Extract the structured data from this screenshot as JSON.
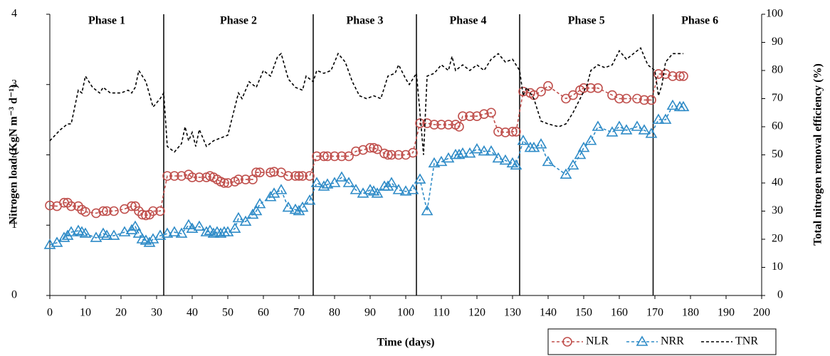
{
  "chart_data": {
    "type": "line",
    "x_label": "Time (days)",
    "y_label": "Nitrogen load (KgN m⁻³ d⁻¹)",
    "y2_label": "Total nitrogen removal efficiency (%)",
    "xlim": [
      0,
      200
    ],
    "xticks": [
      0,
      10,
      20,
      30,
      40,
      50,
      60,
      70,
      80,
      90,
      100,
      110,
      120,
      130,
      140,
      150,
      160,
      170,
      180,
      190,
      200
    ],
    "ylim": [
      0,
      4
    ],
    "yticks": [
      0,
      1,
      2,
      3,
      4
    ],
    "y2lim": [
      0,
      100
    ],
    "y2ticks": [
      0,
      10,
      20,
      30,
      40,
      50,
      60,
      70,
      80,
      90,
      100
    ],
    "phase_labels": [
      "Phase 1",
      "Phase 2",
      "Phase 3",
      "Phase 4",
      "Phase 5",
      "Phase 6"
    ],
    "phase_boundaries": [
      32,
      74,
      103,
      132,
      169.5
    ],
    "x": [
      0,
      2,
      4,
      5,
      6,
      8,
      9,
      10,
      13,
      15,
      16,
      18,
      21,
      23,
      24,
      25,
      26,
      27,
      28,
      29,
      31,
      33,
      35,
      37,
      39,
      40,
      42,
      44,
      45,
      46,
      47,
      48,
      49,
      50,
      52,
      53,
      55,
      57,
      58,
      59,
      62,
      63,
      65,
      67,
      69,
      70,
      71,
      73,
      75,
      77,
      78,
      80,
      82,
      84,
      86,
      88,
      90,
      91,
      92,
      94,
      95,
      96,
      98,
      100,
      102,
      104,
      106,
      108,
      110,
      112,
      114,
      115,
      116,
      118,
      120,
      122,
      124,
      126,
      128,
      130,
      131,
      133,
      135,
      136,
      138,
      140,
      145,
      147,
      149,
      150,
      152,
      154,
      158,
      160,
      162,
      165,
      167,
      169,
      171,
      173,
      175,
      177,
      178
    ],
    "series": [
      {
        "name": "NLR",
        "color": "#c0504d",
        "marker": "circle",
        "values": [
          1.28,
          1.27,
          1.32,
          1.32,
          1.27,
          1.27,
          1.22,
          1.19,
          1.17,
          1.2,
          1.2,
          1.2,
          1.23,
          1.27,
          1.27,
          1.2,
          1.15,
          1.14,
          1.15,
          1.2,
          1.2,
          1.7,
          1.7,
          1.7,
          1.72,
          1.68,
          1.68,
          1.68,
          1.7,
          1.68,
          1.65,
          1.62,
          1.6,
          1.6,
          1.62,
          1.65,
          1.65,
          1.65,
          1.75,
          1.75,
          1.75,
          1.76,
          1.75,
          1.7,
          1.7,
          1.7,
          1.7,
          1.7,
          1.98,
          1.98,
          1.98,
          1.98,
          1.98,
          1.98,
          2.05,
          2.07,
          2.1,
          2.1,
          2.08,
          2.02,
          2.0,
          2.0,
          2.0,
          2.0,
          2.03,
          2.45,
          2.45,
          2.43,
          2.43,
          2.43,
          2.43,
          2.4,
          2.55,
          2.55,
          2.55,
          2.58,
          2.6,
          2.33,
          2.32,
          2.33,
          2.33,
          2.9,
          2.88,
          2.85,
          2.9,
          2.98,
          2.8,
          2.85,
          2.92,
          2.95,
          2.95,
          2.95,
          2.85,
          2.8,
          2.8,
          2.8,
          2.78,
          2.78,
          3.15,
          3.15,
          3.12,
          3.12,
          3.12
        ]
      },
      {
        "name": "NRR",
        "color": "#2e8bc7",
        "marker": "triangle",
        "values": [
          0.72,
          0.75,
          0.82,
          0.85,
          0.9,
          0.92,
          0.9,
          0.88,
          0.82,
          0.88,
          0.85,
          0.85,
          0.9,
          0.93,
          0.98,
          0.88,
          0.8,
          0.78,
          0.75,
          0.8,
          0.85,
          0.88,
          0.9,
          0.88,
          1.0,
          0.95,
          0.98,
          0.9,
          0.92,
          0.88,
          0.9,
          0.88,
          0.9,
          0.9,
          0.95,
          1.1,
          1.05,
          1.15,
          1.2,
          1.3,
          1.4,
          1.45,
          1.5,
          1.25,
          1.22,
          1.2,
          1.25,
          1.35,
          1.6,
          1.55,
          1.58,
          1.6,
          1.68,
          1.6,
          1.5,
          1.45,
          1.5,
          1.48,
          1.45,
          1.55,
          1.55,
          1.6,
          1.5,
          1.48,
          1.5,
          1.65,
          1.2,
          1.88,
          1.9,
          1.95,
          2.0,
          2.0,
          2.02,
          2.02,
          2.08,
          2.05,
          2.05,
          1.95,
          1.92,
          1.88,
          1.85,
          2.2,
          2.1,
          2.1,
          2.15,
          1.9,
          1.72,
          1.85,
          2.0,
          2.1,
          2.2,
          2.4,
          2.32,
          2.4,
          2.35,
          2.4,
          2.35,
          2.3,
          2.5,
          2.5,
          2.7,
          2.68,
          2.68
        ]
      },
      {
        "name": "TNR",
        "color": "#000000",
        "marker": "none",
        "axis": "y2",
        "x": [
          0,
          3,
          5,
          6,
          7,
          8,
          9,
          10,
          12,
          14,
          15,
          17,
          20,
          22,
          23,
          24,
          25,
          27,
          29,
          31,
          32,
          33,
          35,
          37,
          38,
          39,
          40,
          41,
          42,
          44,
          46,
          48,
          50,
          52,
          53,
          54,
          56,
          58,
          60,
          62,
          64,
          65,
          67,
          69,
          71,
          72,
          74,
          75,
          77,
          79,
          81,
          83,
          85,
          87,
          89,
          91,
          93,
          95,
          97,
          98,
          100,
          101,
          103,
          104,
          105,
          106,
          108,
          110,
          112,
          113,
          114,
          116,
          118,
          120,
          122,
          124,
          126,
          128,
          130,
          132,
          133,
          134,
          136,
          138,
          140,
          143,
          145,
          147,
          149,
          151,
          152,
          154,
          156,
          158,
          160,
          162,
          164,
          166,
          168,
          170,
          171,
          172,
          173,
          175,
          177,
          178
        ],
        "values": [
          55,
          59,
          61,
          61,
          67,
          73,
          72,
          78,
          74,
          72,
          74,
          72,
          72,
          73,
          72,
          74,
          80,
          76,
          67,
          70,
          72,
          53,
          51,
          54,
          60,
          55,
          58,
          53,
          59,
          53,
          55,
          56,
          57,
          67,
          72,
          70,
          76,
          74,
          80,
          78,
          85,
          86,
          77,
          74,
          73,
          78,
          76,
          80,
          79,
          80,
          86,
          83,
          76,
          71,
          70,
          71,
          70,
          78,
          79,
          82,
          77,
          75,
          79,
          65,
          50,
          78,
          79,
          82,
          80,
          85,
          80,
          82,
          80,
          82,
          80,
          84,
          86,
          83,
          84,
          80,
          71,
          74,
          70,
          62,
          61,
          60,
          61,
          65,
          70,
          75,
          80,
          82,
          81,
          82,
          87,
          84,
          86,
          88,
          82,
          80,
          71,
          75,
          83,
          86,
          86,
          86
        ]
      }
    ]
  }
}
